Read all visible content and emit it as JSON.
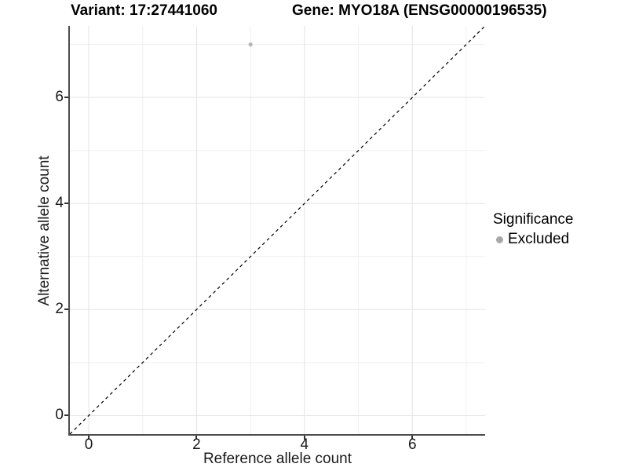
{
  "titles": {
    "variant": "Variant: 17:27441060",
    "gene": "Gene: MYO18A (ENSG00000196535)"
  },
  "chart_data": {
    "type": "scatter",
    "title_left": "Variant: 17:27441060",
    "title_right": "Gene: MYO18A (ENSG00000196535)",
    "xlabel": "Reference allele count",
    "ylabel": "Alternative allele count",
    "xlim": [
      -0.35,
      7.35
    ],
    "ylim": [
      -0.35,
      7.35
    ],
    "x_major_ticks": [
      0,
      2,
      4,
      6
    ],
    "y_major_ticks": [
      0,
      2,
      4,
      6
    ],
    "x_minor_ticks": [
      1,
      3,
      5,
      7
    ],
    "y_minor_ticks": [
      1,
      3,
      5,
      7
    ],
    "grid": true,
    "points": [
      {
        "x": 3,
        "y": 7,
        "series": "Excluded",
        "color": "#b6b6b6",
        "radius": 2.6
      }
    ],
    "reference_line": {
      "kind": "identity",
      "from": [
        -0.35,
        -0.35
      ],
      "to": [
        7.35,
        7.35
      ],
      "style": "dashed",
      "color": "#000000"
    },
    "legend": {
      "title": "Significance",
      "position": "right",
      "items": [
        {
          "label": "Excluded",
          "color": "#a8a8a8"
        }
      ]
    }
  },
  "colors": {
    "axis_line": "#4d4d4d",
    "tick_mark": "#333333",
    "grid_major": "#e3e3e3",
    "grid_minor": "#efefef",
    "background": "#ffffff",
    "text": "#000000"
  }
}
